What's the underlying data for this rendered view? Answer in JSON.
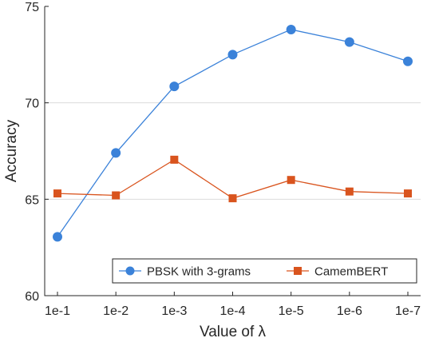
{
  "chart_data": {
    "type": "line",
    "categories": [
      "1e-1",
      "1e-2",
      "1e-3",
      "1e-4",
      "1e-5",
      "1e-6",
      "1e-7"
    ],
    "xlabel": "Value of λ",
    "ylabel": "Accuracy",
    "ylim": [
      60,
      75
    ],
    "yticks": [
      60,
      65,
      70,
      75
    ],
    "grid": "horizontal",
    "legend_position": "bottom-right",
    "series": [
      {
        "name": "PBSK with 3-grams",
        "color": "#3b82d9",
        "marker": "circle",
        "values": [
          63.05,
          67.4,
          70.85,
          72.5,
          73.8,
          73.15,
          72.15
        ]
      },
      {
        "name": "CamemBERT",
        "color": "#d9541e",
        "marker": "square",
        "values": [
          65.3,
          65.2,
          67.05,
          65.05,
          66.0,
          65.4,
          65.3
        ]
      }
    ]
  }
}
